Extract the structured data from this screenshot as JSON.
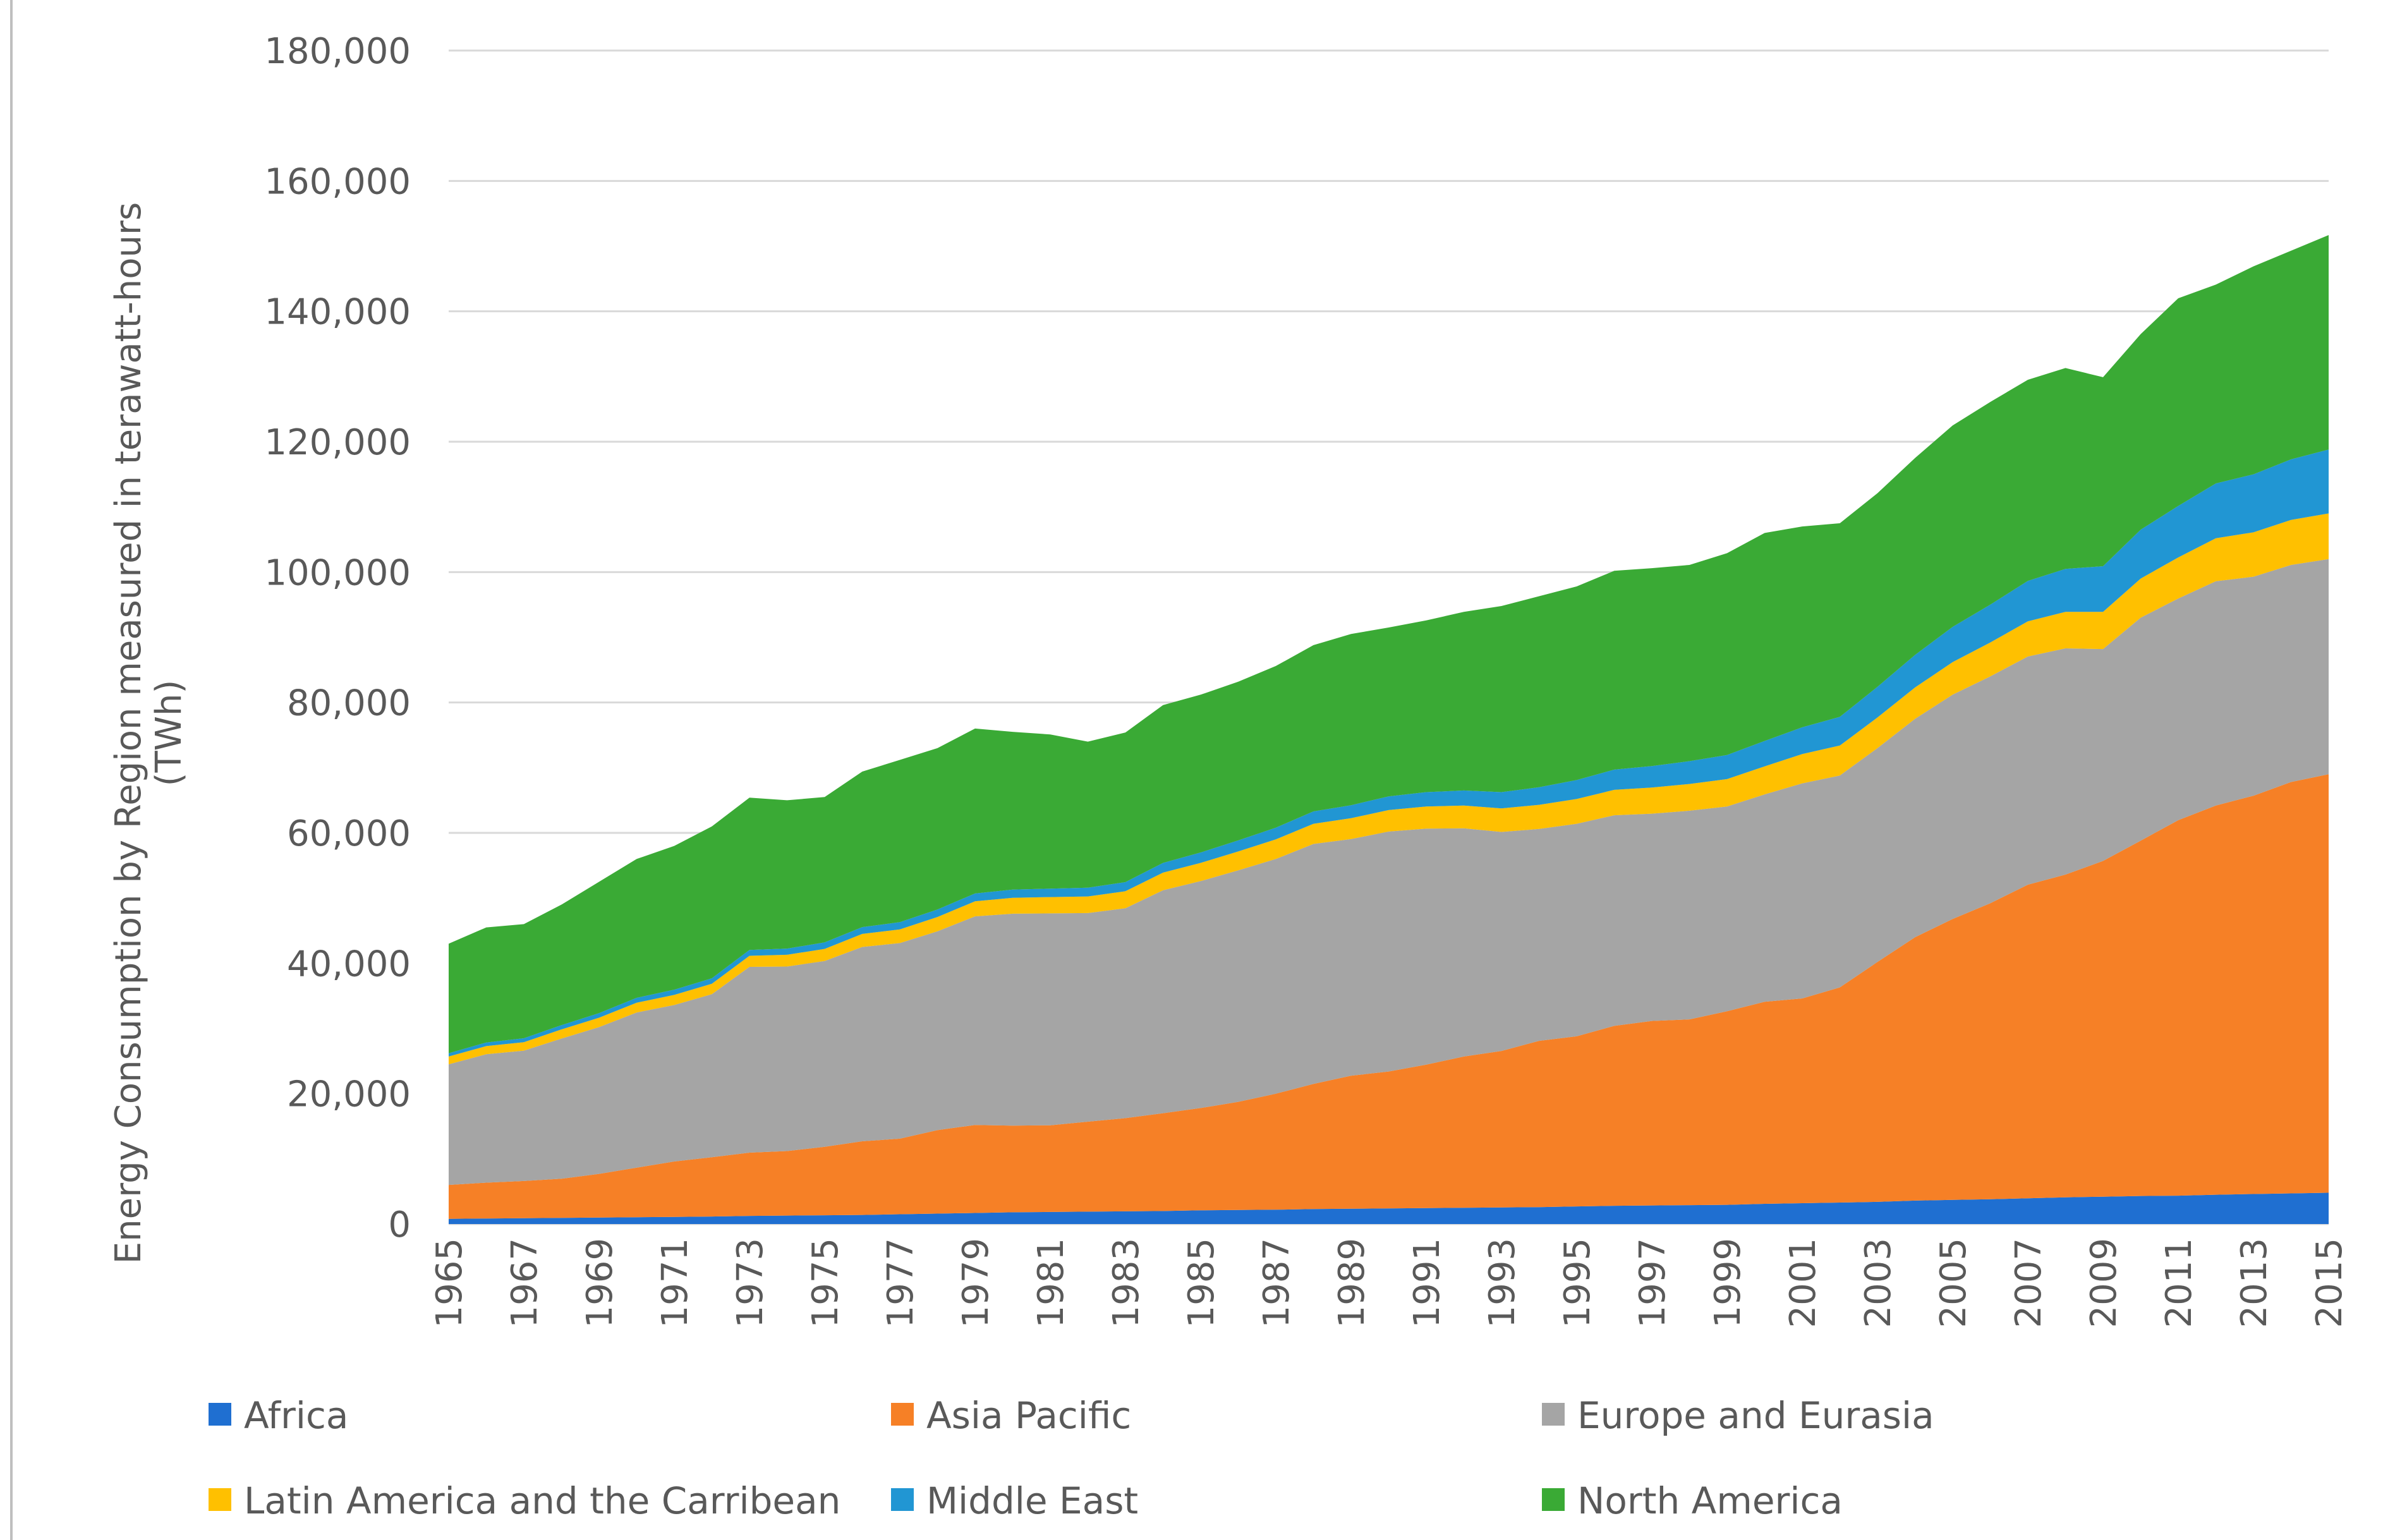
{
  "chart_data": {
    "type": "area",
    "stacked": true,
    "title": "",
    "xlabel": "",
    "ylabel_lines": [
      "Energy Consumption by Region measured in terawatt-hours",
      "(TWh)"
    ],
    "ylim": [
      0,
      180000
    ],
    "y_ticks": [
      0,
      20000,
      40000,
      60000,
      80000,
      100000,
      120000,
      140000,
      160000,
      180000
    ],
    "y_tick_labels": [
      "0",
      "20,000",
      "40,000",
      "60,000",
      "80,000",
      "100,000",
      "120,000",
      "140,000",
      "160,000",
      "180,000"
    ],
    "x_tick_labels": [
      "1965",
      "1967",
      "1969",
      "1971",
      "1973",
      "1975",
      "1977",
      "1979",
      "1981",
      "1983",
      "1985",
      "1987",
      "1989",
      "1991",
      "1993",
      "1995",
      "1997",
      "1999",
      "2001",
      "2003",
      "2005",
      "2007",
      "2009",
      "2011",
      "2013",
      "2015"
    ],
    "grid": true,
    "legend_position": "bottom",
    "x": [
      1965,
      1966,
      1967,
      1968,
      1969,
      1970,
      1971,
      1972,
      1973,
      1974,
      1975,
      1976,
      1977,
      1978,
      1979,
      1980,
      1981,
      1982,
      1983,
      1984,
      1985,
      1986,
      1987,
      1988,
      1989,
      1990,
      1991,
      1992,
      1993,
      1994,
      1995,
      1996,
      1997,
      1998,
      1999,
      2000,
      2001,
      2002,
      2003,
      2004,
      2005,
      2006,
      2007,
      2008,
      2009,
      2010,
      2011,
      2012,
      2013,
      2014,
      2015
    ],
    "series": [
      {
        "name": "Africa",
        "color": "#1f6fd1",
        "values": [
          800,
          850,
          900,
          950,
          1000,
          1050,
          1100,
          1150,
          1250,
          1300,
          1350,
          1400,
          1500,
          1600,
          1700,
          1800,
          1850,
          1900,
          1950,
          2000,
          2100,
          2150,
          2200,
          2300,
          2350,
          2400,
          2450,
          2500,
          2550,
          2600,
          2700,
          2800,
          2850,
          2900,
          2950,
          3100,
          3200,
          3300,
          3400,
          3600,
          3700,
          3800,
          3950,
          4100,
          4200,
          4300,
          4350,
          4500,
          4600,
          4700,
          4800
        ]
      },
      {
        "name": "Asia Pacific",
        "color": "#f68026",
        "values": [
          5200,
          5500,
          5700,
          6000,
          6700,
          7600,
          8500,
          9100,
          9700,
          9900,
          10500,
          11300,
          11600,
          12800,
          13500,
          13300,
          13300,
          13800,
          14300,
          15000,
          15700,
          16600,
          17800,
          19200,
          20400,
          21000,
          22000,
          23200,
          24000,
          25500,
          26100,
          27600,
          28300,
          28500,
          29700,
          31000,
          31400,
          33000,
          36800,
          40400,
          43100,
          45400,
          48100,
          49500,
          51500,
          54500,
          57600,
          59700,
          61100,
          63100,
          64200
        ]
      },
      {
        "name": "Europe and Eurasia",
        "color": "#a5a5a5",
        "values": [
          18500,
          19700,
          20000,
          21500,
          22500,
          23800,
          24000,
          25000,
          28500,
          28300,
          28500,
          29800,
          30000,
          30500,
          32000,
          32500,
          32500,
          32000,
          32200,
          34200,
          34800,
          35500,
          36000,
          36800,
          36300,
          36800,
          36200,
          35000,
          33600,
          32500,
          32600,
          32300,
          31800,
          32000,
          31400,
          31800,
          33000,
          32500,
          32800,
          33500,
          34400,
          34800,
          35000,
          34700,
          32500,
          34200,
          34000,
          34400,
          33600,
          33300,
          33000
        ]
      },
      {
        "name": "Latin America and the Carribean",
        "color": "#ffc000",
        "values": [
          1200,
          1250,
          1300,
          1400,
          1450,
          1500,
          1550,
          1600,
          1700,
          1800,
          1850,
          2000,
          2100,
          2200,
          2300,
          2450,
          2500,
          2550,
          2600,
          2700,
          2800,
          2900,
          3000,
          3100,
          3200,
          3300,
          3400,
          3500,
          3600,
          3700,
          3800,
          3900,
          4000,
          4100,
          4200,
          4300,
          4500,
          4600,
          4700,
          4800,
          5000,
          5200,
          5400,
          5600,
          5700,
          6000,
          6300,
          6600,
          6800,
          6900,
          7000
        ]
      },
      {
        "name": "Middle East",
        "color": "#2196d3",
        "values": [
          500,
          550,
          600,
          650,
          700,
          750,
          800,
          850,
          900,
          950,
          1000,
          1050,
          1100,
          1150,
          1200,
          1250,
          1300,
          1350,
          1400,
          1500,
          1600,
          1700,
          1800,
          1900,
          2000,
          2100,
          2200,
          2300,
          2500,
          2700,
          2900,
          3100,
          3300,
          3500,
          3700,
          3900,
          4100,
          4400,
          4700,
          5000,
          5400,
          5800,
          6200,
          6600,
          7000,
          7500,
          7900,
          8400,
          8900,
          9300,
          9800
        ]
      },
      {
        "name": "North America",
        "color": "#3aaa35",
        "values": [
          16800,
          17650,
          17500,
          18500,
          20150,
          21300,
          22050,
          23300,
          23350,
          22750,
          22300,
          23850,
          24900,
          24750,
          25300,
          24200,
          23650,
          22400,
          22950,
          24200,
          24200,
          24350,
          24800,
          25500,
          26250,
          25900,
          26350,
          27400,
          28550,
          29300,
          29700,
          30500,
          30350,
          30100,
          30950,
          31900,
          30800,
          29700,
          29700,
          30200,
          30900,
          31100,
          30850,
          30800,
          29000,
          30000,
          31850,
          30500,
          31900,
          32000,
          32900
        ]
      }
    ]
  }
}
